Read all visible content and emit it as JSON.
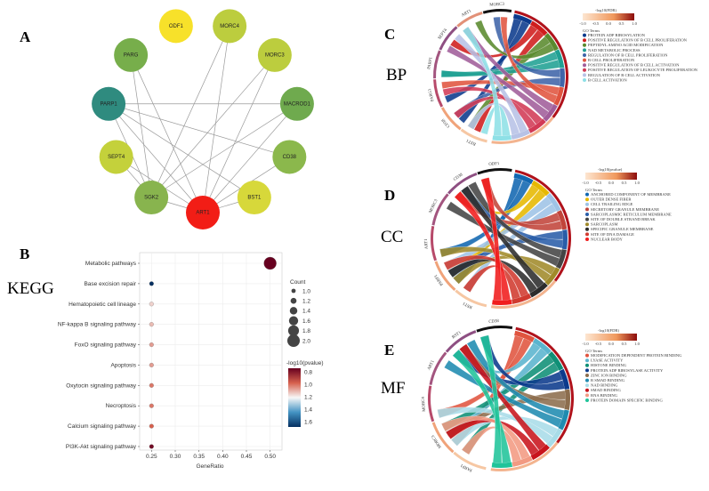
{
  "panels": {
    "A": "A",
    "B": "B",
    "C": "C",
    "D": "D",
    "E": "E"
  },
  "section_labels": {
    "kegg": "KEGG",
    "bp": "BP",
    "cc": "CC",
    "mf": "MF"
  },
  "network": {
    "nodes": [
      {
        "id": "ODF1",
        "color": "#f7e12a"
      },
      {
        "id": "MORC4",
        "color": "#bccd3e"
      },
      {
        "id": "MORC3",
        "color": "#bccd3e"
      },
      {
        "id": "MACROD1",
        "color": "#6faa4e"
      },
      {
        "id": "CD38",
        "color": "#8bb84c"
      },
      {
        "id": "BST1",
        "color": "#d7d83a"
      },
      {
        "id": "ART1",
        "color": "#f21d16"
      },
      {
        "id": "SGK2",
        "color": "#88b44e"
      },
      {
        "id": "SEPT4",
        "color": "#c4d13b"
      },
      {
        "id": "PARP1",
        "color": "#2f8b7f"
      },
      {
        "id": "PARG",
        "color": "#77ae4b"
      }
    ],
    "edges": [
      [
        "ART1",
        "MORC4"
      ],
      [
        "ART1",
        "MORC3"
      ],
      [
        "ART1",
        "MACROD1"
      ],
      [
        "ART1",
        "CD38"
      ],
      [
        "ART1",
        "BST1"
      ],
      [
        "ART1",
        "SGK2"
      ],
      [
        "ART1",
        "SEPT4"
      ],
      [
        "ART1",
        "PARP1"
      ],
      [
        "ART1",
        "PARG"
      ],
      [
        "PARP1",
        "MACROD1"
      ],
      [
        "PARP1",
        "CD38"
      ],
      [
        "PARP1",
        "SGK2"
      ],
      [
        "PARP1",
        "BST1"
      ],
      [
        "SGK2",
        "MORC4"
      ],
      [
        "SGK2",
        "MORC3"
      ],
      [
        "SGK2",
        "MACROD1"
      ],
      [
        "SEPT4",
        "SGK2"
      ],
      [
        "PARG",
        "SGK2"
      ]
    ]
  },
  "chart_data": [
    {
      "type": "scatter",
      "title": "",
      "xlabel": "GeneRatio",
      "ylabel": "",
      "xlim": [
        0.225,
        0.525
      ],
      "xticks": [
        "0.25",
        "0.30",
        "0.35",
        "0.40",
        "0.45",
        "0.50"
      ],
      "categories": [
        "Metabolic pathways",
        "Base excision repair",
        "Hematopoietic cell lineage",
        "NF-kappa B signaling pathway",
        "FoxO signaling pathway",
        "Apoptosis",
        "Oxytocin signaling pathway",
        "Necroptosis",
        "Calcium signaling pathway",
        "PI3K-Akt signaling pathway"
      ],
      "points": [
        {
          "y": "Metabolic pathways",
          "x": 0.5,
          "count": 2,
          "neglog10p": 0.8
        },
        {
          "y": "Base excision repair",
          "x": 0.25,
          "count": 1,
          "neglog10p": 1.7
        },
        {
          "y": "Hematopoietic cell lineage",
          "x": 0.25,
          "count": 1,
          "neglog10p": 1.15
        },
        {
          "y": "NF-kappa B signaling pathway",
          "x": 0.25,
          "count": 1,
          "neglog10p": 1.12
        },
        {
          "y": "FoxO signaling pathway",
          "x": 0.25,
          "count": 1,
          "neglog10p": 1.08
        },
        {
          "y": "Apoptosis",
          "x": 0.25,
          "count": 1,
          "neglog10p": 1.08
        },
        {
          "y": "Oxytocin signaling pathway",
          "x": 0.25,
          "count": 1,
          "neglog10p": 1.03
        },
        {
          "y": "Necroptosis",
          "x": 0.25,
          "count": 1,
          "neglog10p": 1.03
        },
        {
          "y": "Calcium signaling pathway",
          "x": 0.25,
          "count": 1,
          "neglog10p": 1.0
        },
        {
          "y": "PI3K-Akt signaling pathway",
          "x": 0.25,
          "count": 1,
          "neglog10p": 0.82
        }
      ],
      "size_legend": {
        "title": "Count",
        "values": [
          "1.0",
          "1.2",
          "1.4",
          "1.6",
          "1.8",
          "2.0"
        ]
      },
      "color_legend": {
        "title": "-log10(pvalue)",
        "ticks": [
          "0.8",
          "1.0",
          "1.2",
          "1.4",
          "1.6"
        ],
        "low_color": "#67001f",
        "mid_color": "#f7f7f7",
        "high_color": "#053061"
      }
    }
  ],
  "chords": {
    "bp": {
      "scale_title": "-log10(FDR)",
      "scale_ticks": [
        "-1.0",
        "-0.5",
        "0.0",
        "0.5",
        "1.0"
      ],
      "terms_title": "GO Terms",
      "genes": [
        "BST1",
        "CD38",
        "PARG1",
        "PARP1",
        "SEPT4",
        "ART1",
        "MORC3"
      ],
      "terms": [
        {
          "label": "PROTEIN ADP RIBOSYLATION",
          "color": "#0b3a8c"
        },
        {
          "label": "POSITIVE REGULATION OF B CELL PROLIFERATION",
          "color": "#cf1d1d"
        },
        {
          "label": "PEPTIDYL AMINO ACID MODIFICATION",
          "color": "#5a8a2e"
        },
        {
          "label": "NAD METABOLIC PROCESS",
          "color": "#20a093"
        },
        {
          "label": "REGULATION OF B CELL PROLIFERATION",
          "color": "#3f64a8"
        },
        {
          "label": "B CELL PROLIFERATION",
          "color": "#e0543f"
        },
        {
          "label": "POSITIVE REGULATION OF B CELL ACTIVATION",
          "color": "#a15d9a"
        },
        {
          "label": "POSITIVE REGULATION OF LEUKOCYTE PROLIFERATION",
          "color": "#d23a55"
        },
        {
          "label": "REGULATION OF B CELL ACTIVATION",
          "color": "#b7c2e6"
        },
        {
          "label": "B CELL ACTIVATION",
          "color": "#8ee0e6"
        }
      ]
    },
    "cc": {
      "scale_title": "-log10(pvalue)",
      "scale_ticks": [
        "-1.0",
        "-0.5",
        "0.0",
        "0.5",
        "1.0"
      ],
      "terms_title": "GO Terms",
      "genes": [
        "BST1",
        "PARP1",
        "ART1",
        "MORC3",
        "CD38",
        "ODF1"
      ],
      "terms": [
        {
          "label": "ANCHORED COMPONENT OF MEMBRANE",
          "color": "#1167b1"
        },
        {
          "label": "OUTER DENSE FIBER",
          "color": "#e6b800"
        },
        {
          "label": "CELL TRAILING EDGE",
          "color": "#9ec3e6"
        },
        {
          "label": "SECRETORY GRANULE MEMBRANE",
          "color": "#c1443a"
        },
        {
          "label": "SARCOPLASMIC RETICULUM MEMBRANE",
          "color": "#2a5da8"
        },
        {
          "label": "SITE OF DOUBLE STRAND BREAK",
          "color": "#444444"
        },
        {
          "label": "SARCOPLASM",
          "color": "#a08a2a"
        },
        {
          "label": "SPECIFIC GRANULE MEMBRANE",
          "color": "#2c2c2c"
        },
        {
          "label": "SITE OF DNA DAMAGE",
          "color": "#d03a2f"
        },
        {
          "label": "NUCLEAR BODY",
          "color": "#f01d1d"
        }
      ]
    },
    "mf": {
      "scale_title": "-log10(FDR)",
      "scale_ticks": [
        "-1.0",
        "-0.5",
        "0.0",
        "0.5",
        "1.0"
      ],
      "terms_title": "GO Terms",
      "genes": [
        "PARP1",
        "MORC3",
        "MORC4",
        "ART1",
        "BST1",
        "CD38"
      ],
      "terms": [
        {
          "label": "MODIFICATION DEPENDENT PROTEIN BINDING",
          "color": "#e0543f"
        },
        {
          "label": "LYASE ACTIVITY",
          "color": "#5ab4ce"
        },
        {
          "label": "HISTONE BINDING",
          "color": "#0f8f76"
        },
        {
          "label": "PROTEIN ADP RIBOSYLASE ACTIVITY",
          "color": "#0b3a8c"
        },
        {
          "label": "ZINC ION BINDING",
          "color": "#8c6d4d"
        },
        {
          "label": "R SMAD BINDING",
          "color": "#1f8bb0"
        },
        {
          "label": "NAD BINDING",
          "color": "#a8dce8"
        },
        {
          "label": "SMAD BINDING",
          "color": "#c8141c"
        },
        {
          "label": "RNA BINDING",
          "color": "#f29a82"
        },
        {
          "label": "PROTEIN DOMAIN SPECIFIC BINDING",
          "color": "#20c49a"
        }
      ]
    }
  }
}
